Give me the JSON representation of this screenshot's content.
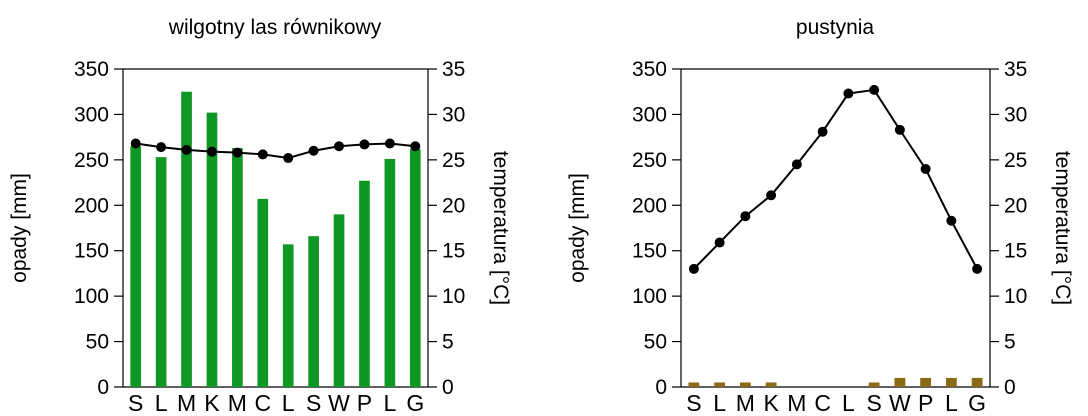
{
  "chart_data": [
    {
      "type": "bar+line",
      "title": "wilgotny las równikowy",
      "ylabel": "opady [mm]",
      "y2label": "temperatura [°C]",
      "categories": [
        "S",
        "L",
        "M",
        "K",
        "M",
        "C",
        "L",
        "S",
        "W",
        "P",
        "L",
        "G"
      ],
      "ylim": [
        0,
        350
      ],
      "y2lim": [
        0,
        35
      ],
      "yticks": [
        "0",
        "50",
        "100",
        "150",
        "200",
        "250",
        "300",
        "350"
      ],
      "y2ticks": [
        "0",
        "5",
        "10",
        "15",
        "20",
        "25",
        "30",
        "35"
      ],
      "series": [
        {
          "kind": "bar",
          "axis": "left",
          "color": "#0f9723",
          "values": [
            265,
            253,
            325,
            302,
            263,
            207,
            157,
            166,
            190,
            227,
            251,
            262
          ]
        },
        {
          "kind": "line",
          "axis": "right",
          "color": "#000000",
          "values": [
            26.8,
            26.4,
            26.1,
            25.9,
            25.8,
            25.6,
            25.2,
            26.0,
            26.5,
            26.7,
            26.8,
            26.5
          ]
        }
      ]
    },
    {
      "type": "bar+line",
      "title": "pustynia",
      "ylabel": "opady [mm]",
      "y2label": "temperatura [°C]",
      "categories": [
        "S",
        "L",
        "M",
        "K",
        "M",
        "C",
        "L",
        "S",
        "W",
        "P",
        "L",
        "G"
      ],
      "ylim": [
        0,
        350
      ],
      "y2lim": [
        0,
        35
      ],
      "yticks": [
        "0",
        "50",
        "100",
        "150",
        "200",
        "250",
        "300",
        "350"
      ],
      "y2ticks": [
        "0",
        "5",
        "10",
        "15",
        "20",
        "25",
        "30",
        "35"
      ],
      "series": [
        {
          "kind": "bar",
          "axis": "left",
          "color": "#8a6a14",
          "values": [
            5,
            5,
            5,
            5,
            0,
            0,
            0,
            5,
            10,
            10,
            10,
            10
          ]
        },
        {
          "kind": "line",
          "axis": "right",
          "color": "#000000",
          "values": [
            13.0,
            15.9,
            18.8,
            21.1,
            24.5,
            28.1,
            32.3,
            32.7,
            28.3,
            24.0,
            18.3,
            13.0
          ]
        }
      ]
    }
  ]
}
